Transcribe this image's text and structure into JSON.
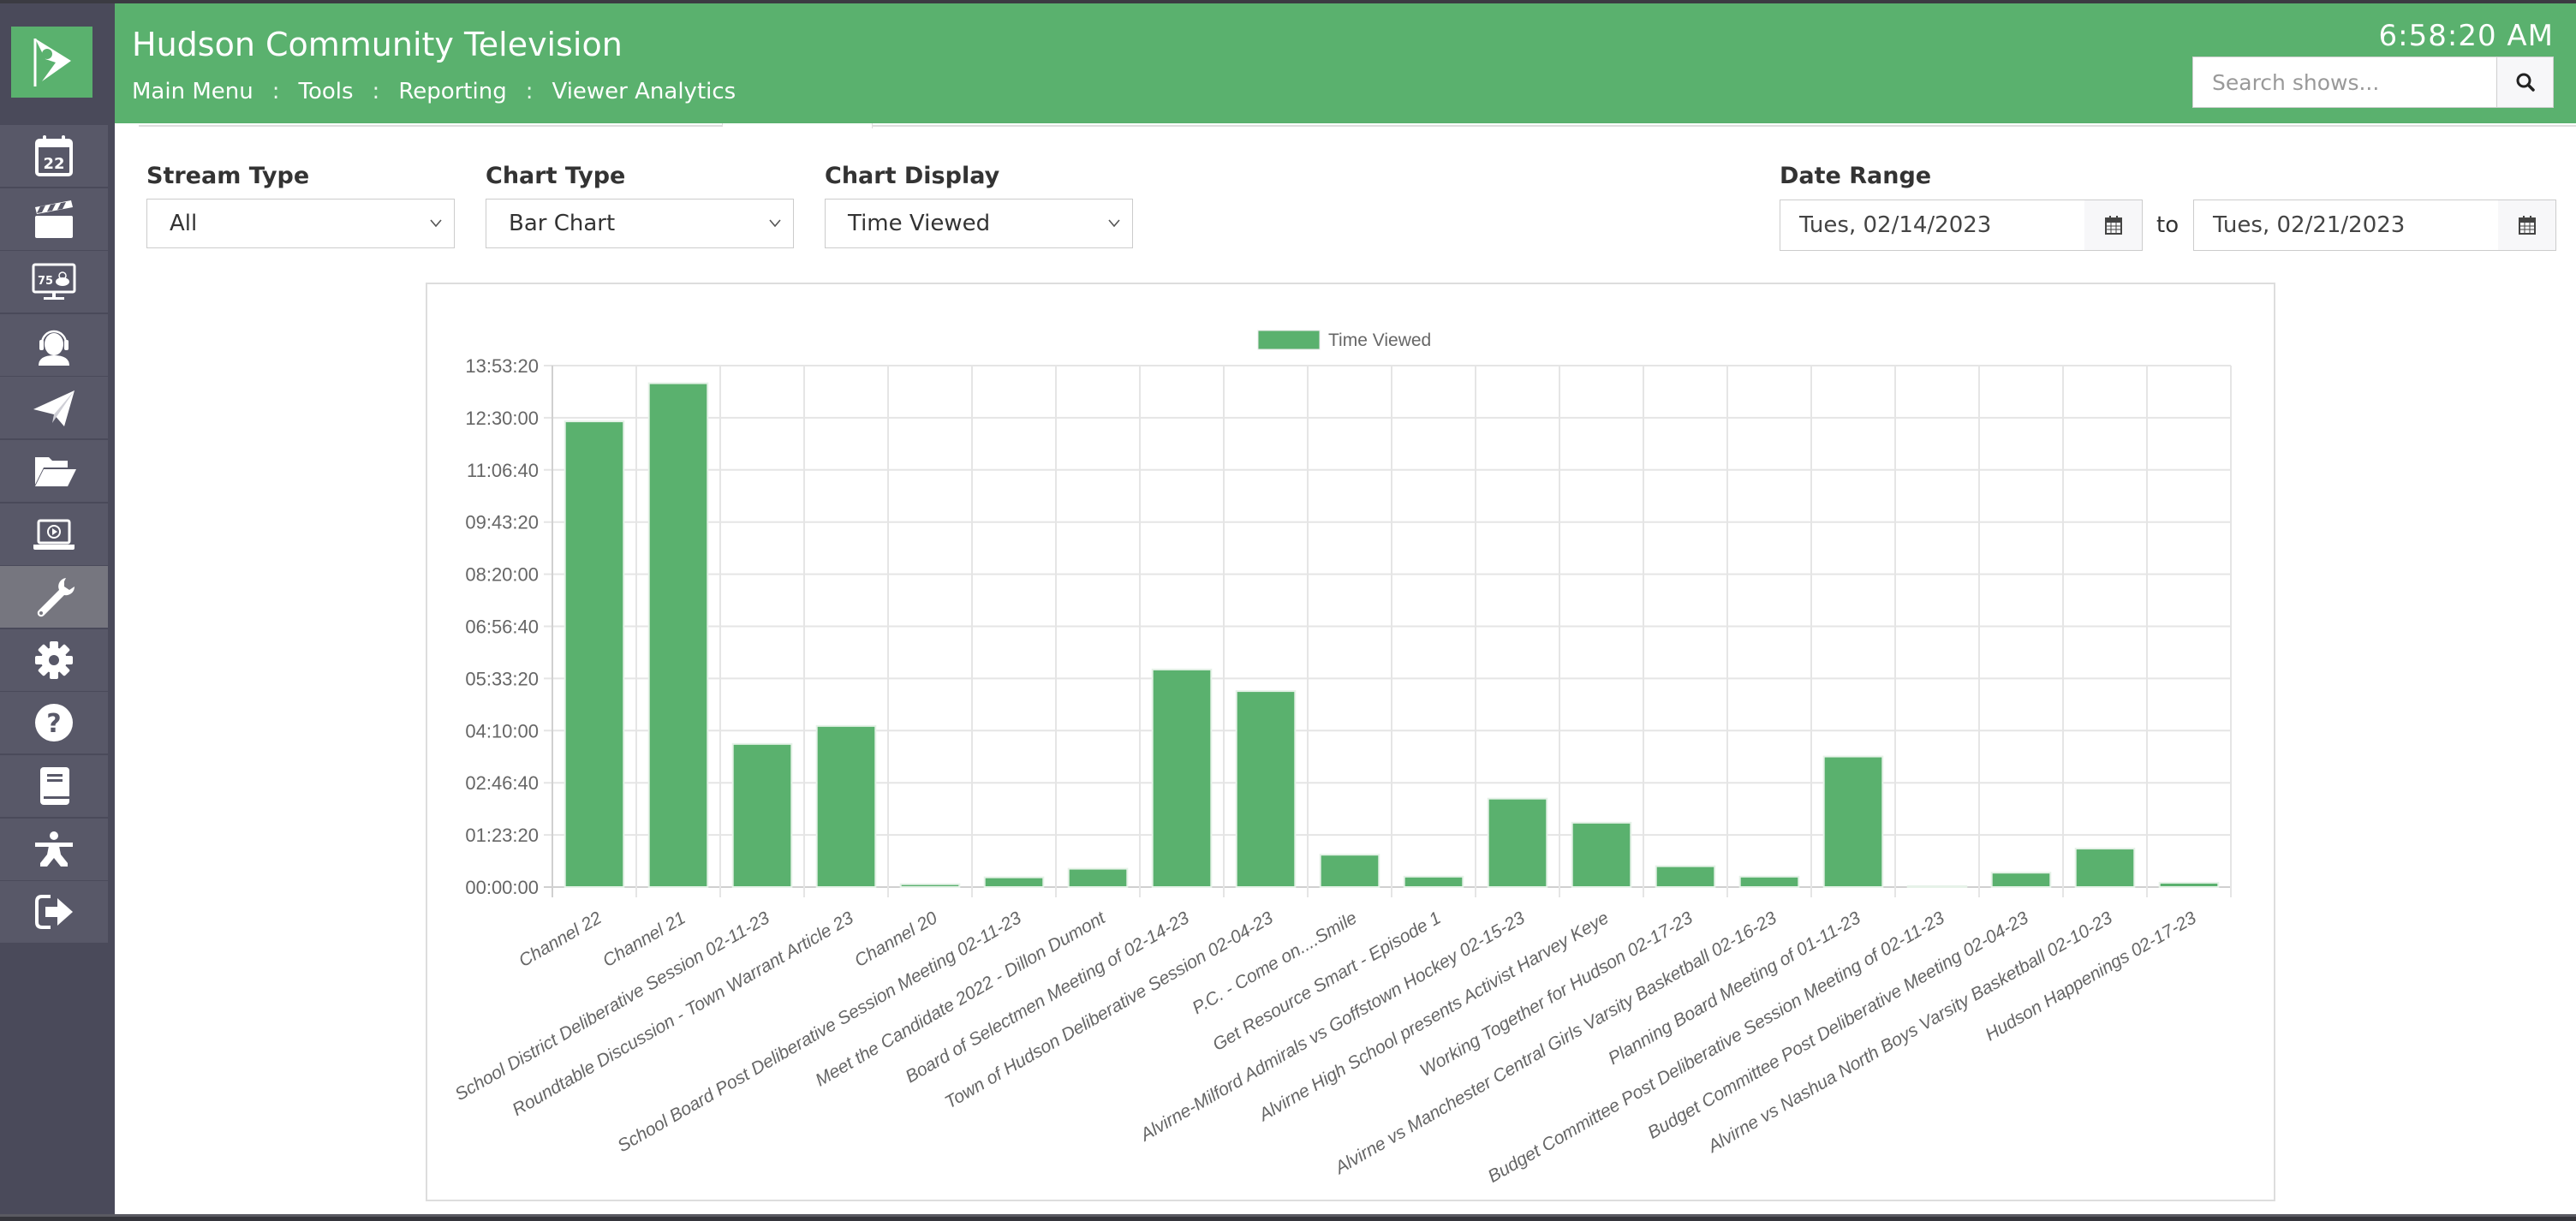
{
  "app": {
    "title": "Hudson Community Television",
    "clock": "6:58:20 AM",
    "brand_color": "#5ab16e",
    "sidebar_color": "#4a4a5a"
  },
  "breadcrumb": {
    "items": [
      "Main Menu",
      "Tools",
      "Reporting",
      "Viewer Analytics"
    ],
    "separator": ":"
  },
  "search": {
    "placeholder": "Search shows...",
    "value": "",
    "icon": "search-icon"
  },
  "sidebar": {
    "items": [
      {
        "icon": "calendar-icon",
        "label": "22",
        "active": false
      },
      {
        "icon": "clapperboard-icon",
        "active": false
      },
      {
        "icon": "weather-display-icon",
        "label": "75",
        "active": false
      },
      {
        "icon": "headset-user-icon",
        "active": false
      },
      {
        "icon": "paper-plane-icon",
        "active": false
      },
      {
        "icon": "folder-open-icon",
        "active": false
      },
      {
        "icon": "laptop-play-icon",
        "active": false
      },
      {
        "icon": "wrench-icon",
        "active": true
      },
      {
        "icon": "gear-icon",
        "active": false
      },
      {
        "icon": "question-circle-icon",
        "active": false
      },
      {
        "icon": "book-icon",
        "active": false
      },
      {
        "icon": "accessibility-figure-icon",
        "active": false
      },
      {
        "icon": "sign-out-icon",
        "active": false
      }
    ]
  },
  "filters": {
    "stream_type": {
      "label": "Stream Type",
      "value": "All"
    },
    "chart_type": {
      "label": "Chart Type",
      "value": "Bar Chart"
    },
    "chart_display": {
      "label": "Chart Display",
      "value": "Time Viewed"
    },
    "date_range": {
      "label": "Date Range",
      "from": "Tues, 02/14/2023",
      "to_label": "to",
      "to": "Tues, 02/21/2023"
    }
  },
  "chart_data": {
    "type": "bar",
    "title": "",
    "xlabel": "",
    "ylabel": "",
    "legend": [
      "Time Viewed"
    ],
    "legend_position": "top",
    "grid": true,
    "bar_color": "#5ab16e",
    "y_unit": "seconds (displayed as HH:MM:SS)",
    "ylim": [
      0,
      50000
    ],
    "y_ticks": [
      "00:00:00",
      "01:23:20",
      "02:46:40",
      "04:10:00",
      "05:33:20",
      "06:56:40",
      "08:20:00",
      "09:43:20",
      "11:06:40",
      "12:30:00",
      "13:53:20"
    ],
    "y_tick_values": [
      0,
      5000,
      10000,
      15000,
      20000,
      25000,
      30000,
      35000,
      40000,
      45000,
      50000
    ],
    "categories": [
      "Channel 22",
      "Channel 21",
      "School District Deliberative Session 02-11-23",
      "Roundtable Discussion - Town Warrant Article 23",
      "Channel 20",
      "School Board Post Deliberative Session Meeting 02-11-23",
      "Meet the Candidate 2022 - Dillon Dumont",
      "Board of Selectmen Meeting of 02-14-23",
      "Town of Hudson Deliberative Session 02-04-23",
      "P.C. - Come on....Smile",
      "Get Resource Smart - Episode 1",
      "Alvirne-Milford Admirals vs Goffstown Hockey 02-15-23",
      "Alvirne High School presents Activist Harvey Keye",
      "Working Together for Hudson 02-17-23",
      "Alvirne vs Manchester Central Girls Varsity Basketball 02-16-23",
      "Planning Board Meeting of 01-11-23",
      "Budget Committee Post Deliberative Session Meeting of 02-11-23",
      "Budget Committee Post Deliberative Meeting 02-04-23",
      "Alvirne vs Nashua North Boys Varsity Basketball 02-10-23",
      "Hudson Happenings 02-17-23"
    ],
    "values": [
      44655,
      48310,
      13724,
      15448,
      276,
      931,
      1759,
      20862,
      18793,
      3103,
      1000,
      8483,
      6172,
      2000,
      1000,
      12517,
      60,
      1379,
      3690,
      414
    ],
    "series": [
      {
        "name": "Time Viewed",
        "values": [
          44655,
          48310,
          13724,
          15448,
          276,
          931,
          1759,
          20862,
          18793,
          3103,
          1000,
          8483,
          6172,
          2000,
          1000,
          12517,
          60,
          1379,
          3690,
          414
        ]
      }
    ]
  }
}
